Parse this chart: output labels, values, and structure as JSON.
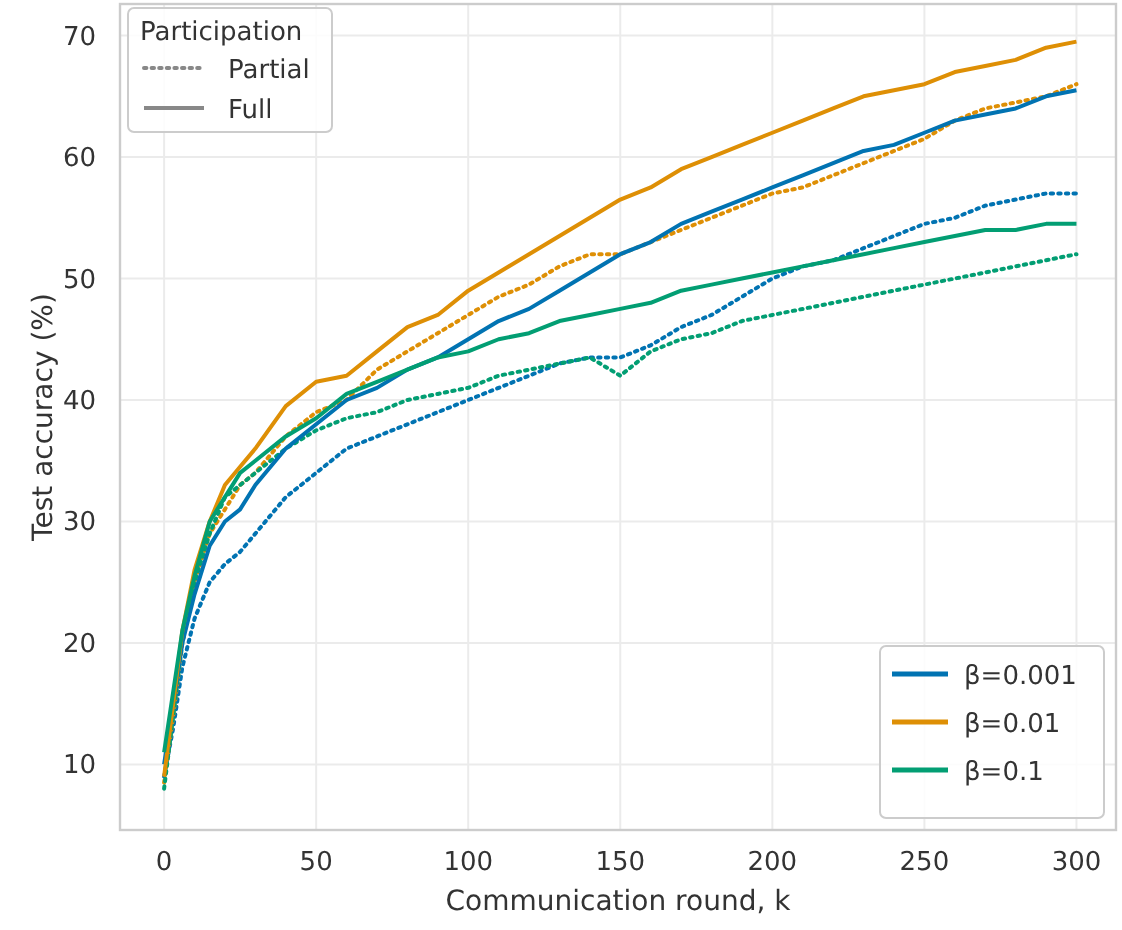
{
  "chart_data": {
    "type": "line",
    "xlabel": "Communication round, k",
    "ylabel": "Test accuracy (%)",
    "x": [
      0,
      3,
      6,
      10,
      15,
      20,
      25,
      30,
      40,
      50,
      60,
      70,
      80,
      90,
      100,
      110,
      120,
      130,
      140,
      150,
      160,
      170,
      180,
      190,
      200,
      210,
      220,
      230,
      240,
      250,
      260,
      270,
      280,
      290,
      300
    ],
    "series": [
      {
        "color": "#0173b2",
        "line_style": "dotted",
        "values": [
          9,
          13,
          18,
          22,
          25,
          26.5,
          27.5,
          29,
          32,
          34,
          36,
          37,
          38,
          39,
          40,
          41,
          42,
          43,
          43.5,
          43.5,
          44.5,
          46,
          47,
          48.5,
          50,
          51,
          51.5,
          52.5,
          53.5,
          54.5,
          55,
          56,
          56.5,
          57,
          57
        ]
      },
      {
        "color": "#de8f05",
        "line_style": "dotted",
        "values": [
          8.5,
          14,
          20,
          25,
          29,
          31,
          33,
          34,
          37,
          39,
          40,
          42.5,
          44,
          45.5,
          47,
          48.5,
          49.5,
          51,
          52,
          52,
          53,
          54,
          55,
          56,
          57,
          57.5,
          58.5,
          59.5,
          60.5,
          61.5,
          63,
          64,
          64.5,
          65,
          66
        ]
      },
      {
        "color": "#029e73",
        "line_style": "dotted",
        "values": [
          8,
          14,
          20,
          25,
          29,
          32,
          33,
          34,
          36,
          37.5,
          38.5,
          39,
          40,
          40.5,
          41,
          42,
          42.5,
          43,
          43.5,
          42,
          44,
          45,
          45.5,
          46.5,
          47,
          47.5,
          48,
          48.5,
          49,
          49.5,
          50,
          50.5,
          51,
          51.5,
          52
        ]
      },
      {
        "name": "β=0.001",
        "color": "#0173b2",
        "line_style": "solid",
        "values": [
          10,
          15,
          20,
          24,
          28,
          30,
          31,
          33,
          36,
          38,
          40,
          41,
          42.5,
          43.5,
          45,
          46.5,
          47.5,
          49,
          50.5,
          52,
          53,
          54.5,
          55.5,
          56.5,
          57.5,
          58.5,
          59.5,
          60.5,
          61,
          62,
          63,
          63.5,
          64,
          65,
          65.5
        ]
      },
      {
        "name": "β=0.01",
        "color": "#de8f05",
        "line_style": "solid",
        "values": [
          9,
          15,
          21,
          26,
          30,
          33,
          34.5,
          36,
          39.5,
          41.5,
          42,
          44,
          46,
          47,
          49,
          50.5,
          52,
          53.5,
          55,
          56.5,
          57.5,
          59,
          60,
          61,
          62,
          63,
          64,
          65,
          65.5,
          66,
          67,
          67.5,
          68,
          69,
          69.5
        ]
      },
      {
        "name": "β=0.1",
        "color": "#029e73",
        "line_style": "solid",
        "values": [
          11,
          16,
          21,
          25.5,
          30,
          32,
          34,
          35,
          37,
          38.5,
          40.5,
          41.5,
          42.5,
          43.5,
          44,
          45,
          45.5,
          46.5,
          47,
          47.5,
          48,
          49,
          49.5,
          50,
          50.5,
          51,
          51.5,
          52,
          52.5,
          53,
          53.5,
          54,
          54,
          54.5,
          54.5
        ]
      }
    ],
    "xlim": [
      -14.5,
      313
    ],
    "ylim": [
      4.6,
      72.6
    ],
    "xticks": [
      0,
      50,
      100,
      150,
      200,
      250,
      300
    ],
    "yticks": [
      10,
      20,
      30,
      40,
      50,
      60,
      70
    ],
    "grid": true,
    "legend": "bottom right",
    "legend_title": "Participation",
    "annotations": [
      "Partial",
      "Full"
    ]
  }
}
